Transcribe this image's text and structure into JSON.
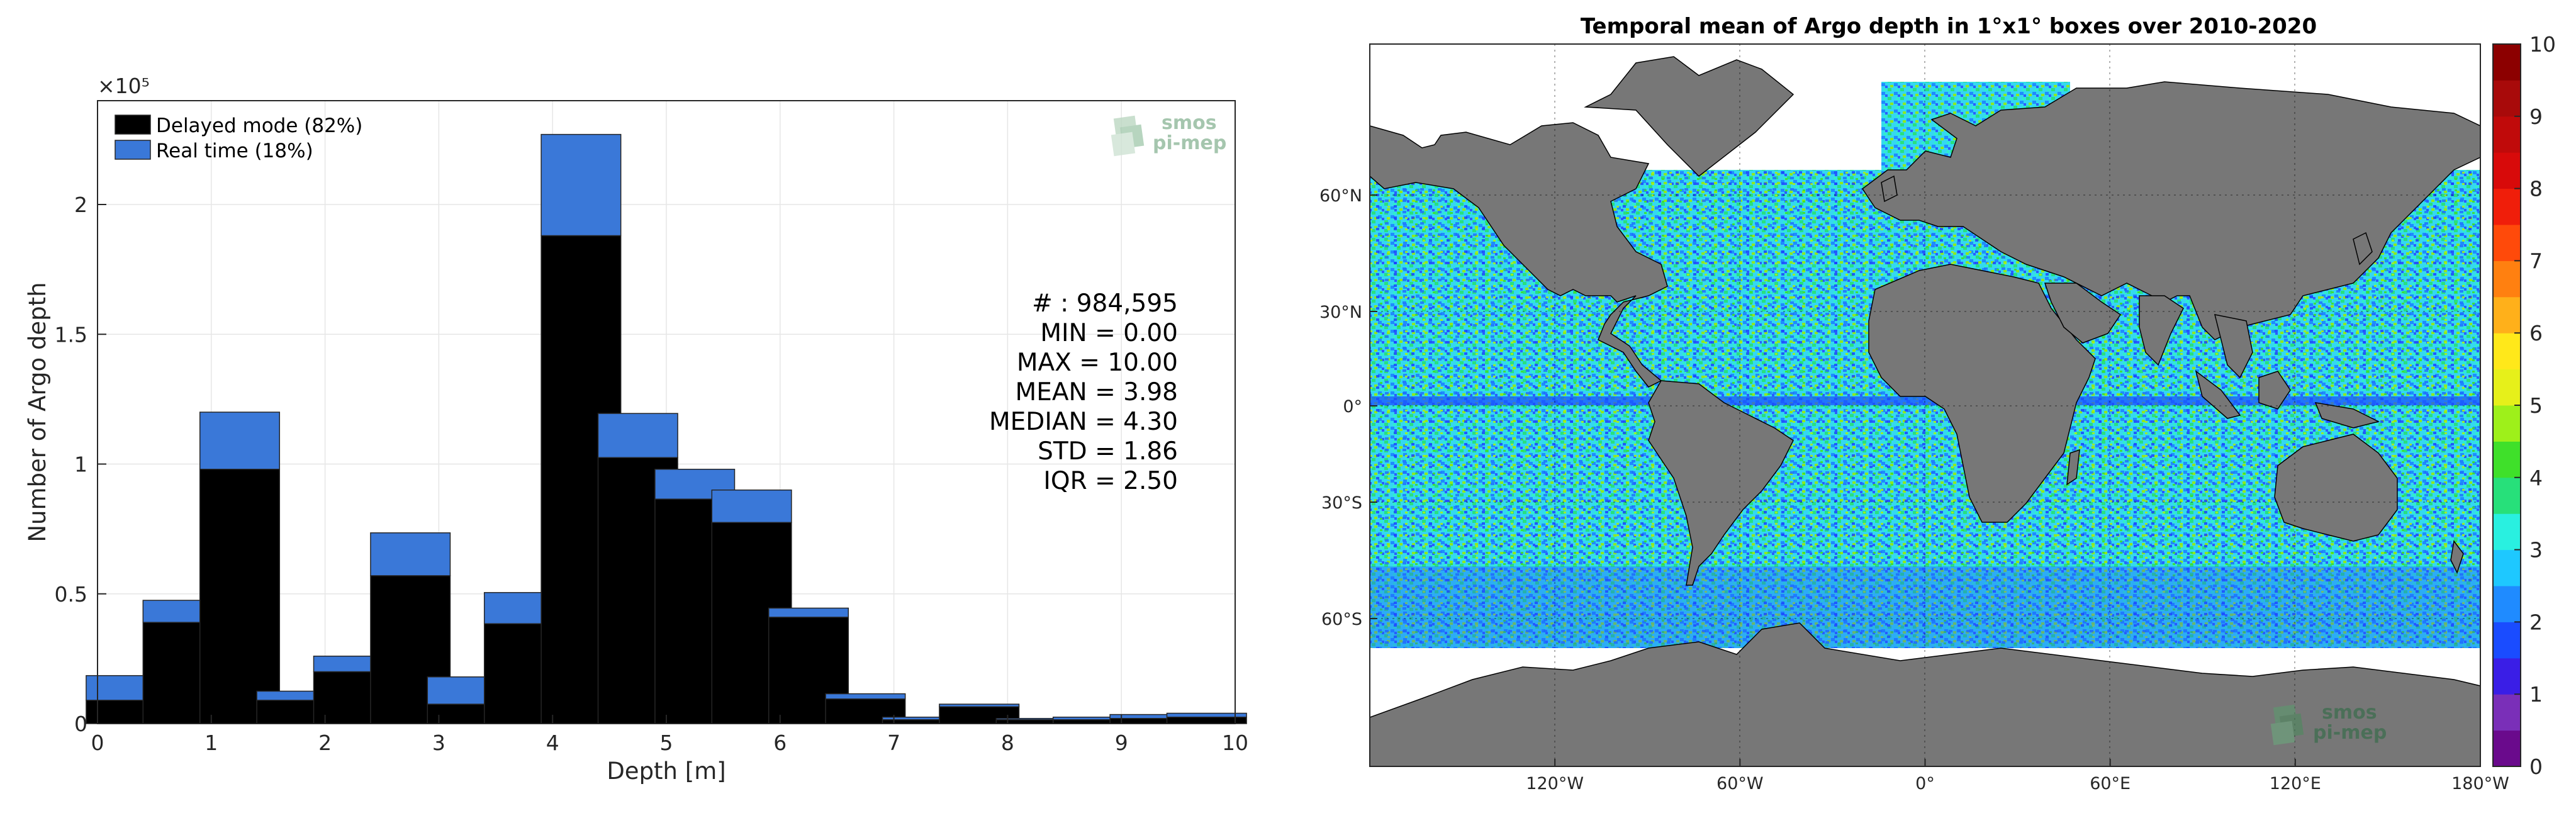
{
  "chart_data": [
    {
      "type": "bar",
      "stacked": true,
      "categories": [
        "0.25",
        "0.75",
        "1.25",
        "1.75",
        "2.25",
        "2.75",
        "3.25",
        "3.75",
        "4.25",
        "4.75",
        "5.25",
        "5.75",
        "6.25",
        "6.75",
        "7.25",
        "7.75",
        "8.25",
        "8.75",
        "9.25",
        "9.75"
      ],
      "series": [
        {
          "name": "Delayed mode (82%)",
          "color": "#000000",
          "values": [
            9000,
            39000,
            98000,
            9000,
            20000,
            57000,
            7500,
            38500,
            188000,
            102500,
            86500,
            77500,
            41000,
            9500,
            1500,
            6500,
            1500,
            1500,
            2000,
            2500
          ]
        },
        {
          "name": "Real time (18%)",
          "color": "#3a78d8",
          "values": [
            9500,
            8500,
            22000,
            3500,
            6000,
            16500,
            10500,
            12000,
            39000,
            17000,
            11500,
            12500,
            3500,
            2000,
            1000,
            1000,
            500,
            1000,
            1500,
            1500
          ]
        }
      ],
      "xlabel": "Depth [m]",
      "ylabel": "Number of Argo depth",
      "ylabel_multiplier": "×10⁵",
      "xlim": [
        0,
        10
      ],
      "ylim": [
        0,
        240000
      ],
      "xticks": [
        "0",
        "1",
        "2",
        "3",
        "4",
        "5",
        "6",
        "7",
        "8",
        "9",
        "10"
      ],
      "yticks": [
        "0",
        "0.5",
        "1",
        "1.5",
        "2"
      ],
      "ytick_values": [
        0,
        50000,
        100000,
        150000,
        200000
      ],
      "grid": true,
      "legend_position": "top-left",
      "stats": {
        "count": "# : 984,595",
        "min": "MIN = 0.00",
        "max": "MAX =  10.00",
        "mean": "MEAN = 3.98",
        "median": "MEDIAN = 4.30",
        "std": "STD = 1.86",
        "iqr": "IQR = 2.50"
      }
    },
    {
      "type": "heatmap",
      "title": "Temporal mean of Argo depth in 1°x1° boxes over 2010-2020",
      "lon_ticks": [
        "120°W",
        "60°W",
        "0°",
        "60°E",
        "120°E",
        "180°W"
      ],
      "lon_tick_values": [
        -120,
        -60,
        0,
        60,
        120,
        180
      ],
      "lat_ticks": [
        "60°N",
        "30°N",
        "0°",
        "30°S",
        "60°S"
      ],
      "lat_tick_values": [
        60,
        30,
        0,
        -30,
        -60
      ],
      "colorbar": {
        "min": 0,
        "max": 10,
        "ticks": [
          "0",
          "1",
          "2",
          "3",
          "4",
          "5",
          "6",
          "7",
          "8",
          "9",
          "10"
        ],
        "colors": [
          "#6a0a8c",
          "#7a2fb8",
          "#3a1ee6",
          "#1a4cff",
          "#1f8bff",
          "#1ec8ff",
          "#29f0e0",
          "#27e07a",
          "#3fe02a",
          "#9ef01a",
          "#e6f01a",
          "#ffe81a",
          "#ffb01a",
          "#ff8010",
          "#ff4a0a",
          "#f01e0a",
          "#d80a0a",
          "#c00a0a",
          "#a80a0a",
          "#8c0000"
        ]
      },
      "land_color": "#777777"
    }
  ],
  "logo": {
    "line1": "smos",
    "line2": "pi-mep"
  }
}
